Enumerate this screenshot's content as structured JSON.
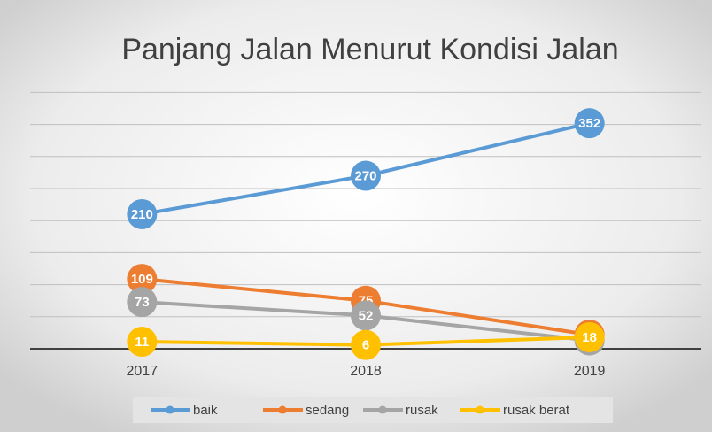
{
  "chart_data": {
    "type": "line",
    "title": "Panjang Jalan Menurut Kondisi Jalan",
    "categories": [
      "2017",
      "2018",
      "2019"
    ],
    "series": [
      {
        "name": "baik",
        "color": "#5b9bd5",
        "values": [
          210,
          270,
          352
        ]
      },
      {
        "name": "sedang",
        "color": "#ed7d31",
        "values": [
          109,
          75,
          22
        ]
      },
      {
        "name": "rusak",
        "color": "#a5a5a5",
        "values": [
          73,
          52,
          13
        ]
      },
      {
        "name": "rusak berat",
        "color": "#ffc000",
        "values": [
          11,
          6,
          18
        ]
      }
    ],
    "ylim": [
      0,
      400
    ],
    "yticks": [
      0,
      50,
      100,
      150,
      200,
      250,
      300,
      350,
      400
    ],
    "grid": true,
    "legend": "bottom"
  }
}
